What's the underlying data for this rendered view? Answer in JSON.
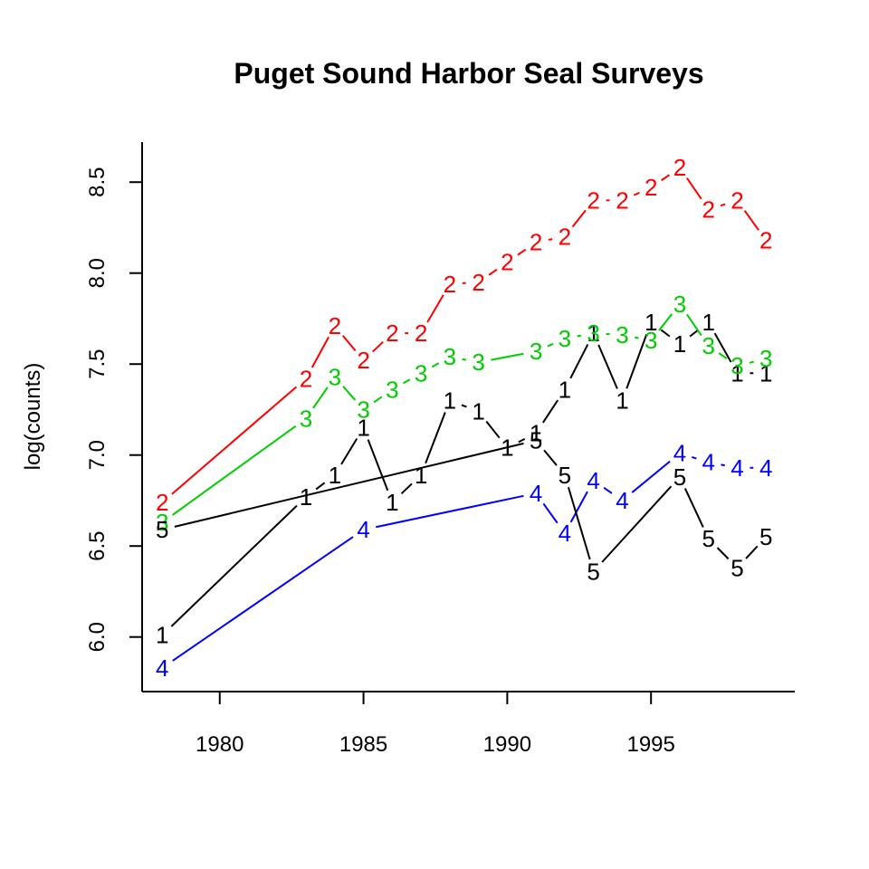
{
  "chart_data": {
    "type": "line",
    "title": "Puget Sound Harbor Seal Surveys",
    "xlabel": "",
    "ylabel": "log(counts)",
    "xlim": [
      1977.3,
      2000.0
    ],
    "ylim": [
      5.7,
      8.72
    ],
    "x_ticks": [
      1980,
      1985,
      1990,
      1995
    ],
    "y_ticks": [
      6.0,
      6.5,
      7.0,
      7.5,
      8.0,
      8.5
    ],
    "grid": false,
    "legend": "none",
    "series": [
      {
        "name": "1",
        "color": "#000000",
        "points": [
          [
            1978,
            6.01
          ],
          [
            1983,
            6.77
          ],
          [
            1984,
            6.89
          ],
          [
            1985,
            7.15
          ],
          [
            1986,
            6.74
          ],
          [
            1987,
            6.89
          ],
          [
            1988,
            7.3
          ],
          [
            1989,
            7.24
          ],
          [
            1990,
            7.04
          ],
          [
            1991,
            7.12
          ],
          [
            1992,
            7.36
          ],
          [
            1993,
            7.67
          ],
          [
            1994,
            7.3
          ],
          [
            1995,
            7.73
          ],
          [
            1996,
            7.61
          ],
          [
            1997,
            7.73
          ],
          [
            1998,
            7.45
          ],
          [
            1999,
            7.45
          ]
        ]
      },
      {
        "name": "2",
        "color": "#ff0000",
        "points": [
          [
            1978,
            6.74
          ],
          [
            1983,
            7.42
          ],
          [
            1984,
            7.71
          ],
          [
            1985,
            7.52
          ],
          [
            1986,
            7.67
          ],
          [
            1987,
            7.67
          ],
          [
            1988,
            7.94
          ],
          [
            1989,
            7.95
          ],
          [
            1990,
            8.06
          ],
          [
            1991,
            8.17
          ],
          [
            1992,
            8.2
          ],
          [
            1993,
            8.4
          ],
          [
            1994,
            8.4
          ],
          [
            1995,
            8.47
          ],
          [
            1996,
            8.58
          ],
          [
            1997,
            8.35
          ],
          [
            1998,
            8.4
          ],
          [
            1999,
            8.18
          ]
        ]
      },
      {
        "name": "3",
        "color": "#00cd00",
        "points": [
          [
            1978,
            6.63
          ],
          [
            1983,
            7.2
          ],
          [
            1984,
            7.43
          ],
          [
            1985,
            7.25
          ],
          [
            1986,
            7.36
          ],
          [
            1987,
            7.45
          ],
          [
            1988,
            7.54
          ],
          [
            1989,
            7.51
          ],
          [
            1991,
            7.57
          ],
          [
            1992,
            7.64
          ],
          [
            1993,
            7.67
          ],
          [
            1994,
            7.66
          ],
          [
            1995,
            7.63
          ],
          [
            1996,
            7.83
          ],
          [
            1997,
            7.6
          ],
          [
            1998,
            7.49
          ],
          [
            1999,
            7.53
          ]
        ]
      },
      {
        "name": "4",
        "color": "#0000ff",
        "points": [
          [
            1978,
            5.83
          ],
          [
            1985,
            6.59
          ],
          [
            1991,
            6.79
          ],
          [
            1992,
            6.57
          ],
          [
            1993,
            6.86
          ],
          [
            1994,
            6.75
          ],
          [
            1996,
            7.01
          ],
          [
            1997,
            6.96
          ],
          [
            1998,
            6.93
          ],
          [
            1999,
            6.93
          ]
        ]
      },
      {
        "name": "5",
        "color": "#000000",
        "points": [
          [
            1978,
            6.59
          ],
          [
            1991,
            7.08
          ],
          [
            1992,
            6.89
          ],
          [
            1993,
            6.36
          ],
          [
            1996,
            6.88
          ],
          [
            1997,
            6.54
          ],
          [
            1998,
            6.38
          ],
          [
            1999,
            6.55
          ]
        ]
      }
    ]
  }
}
